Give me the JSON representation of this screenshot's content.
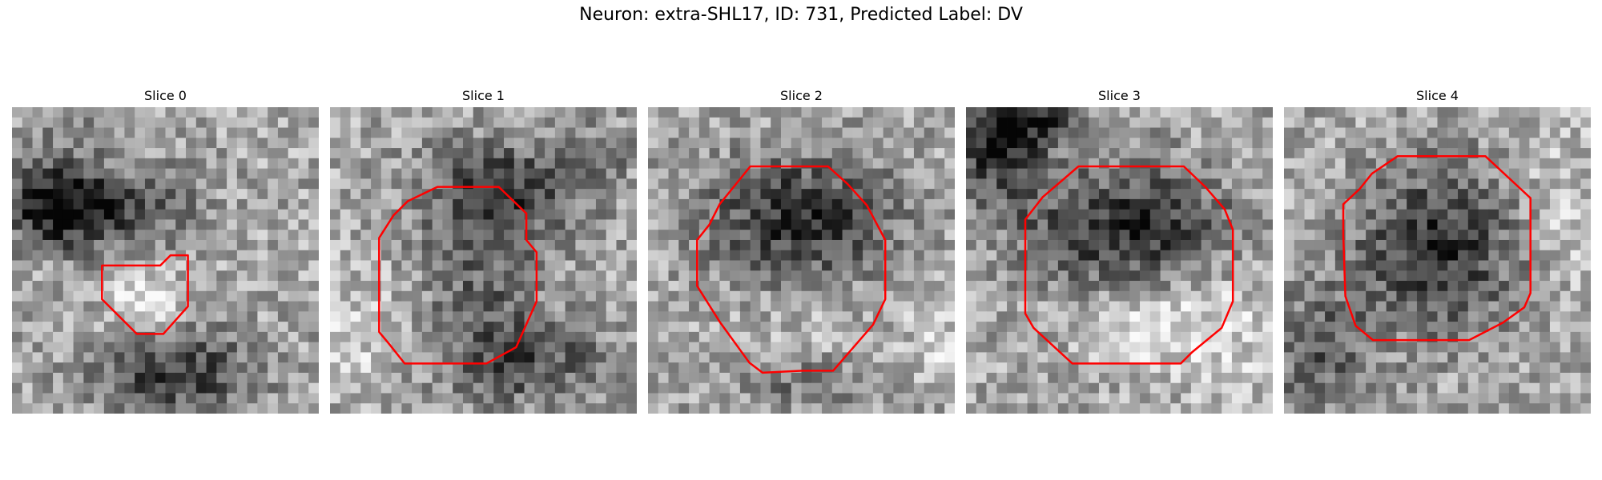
{
  "figure": {
    "title": "Neuron: extra-SHL17, ID: 731, Predicted Label: DV",
    "contour_color": "#ff0000"
  },
  "slices": [
    {
      "title": "Slice 0"
    },
    {
      "title": "Slice 1"
    },
    {
      "title": "Slice 2"
    },
    {
      "title": "Slice 3"
    },
    {
      "title": "Slice 4"
    }
  ]
}
